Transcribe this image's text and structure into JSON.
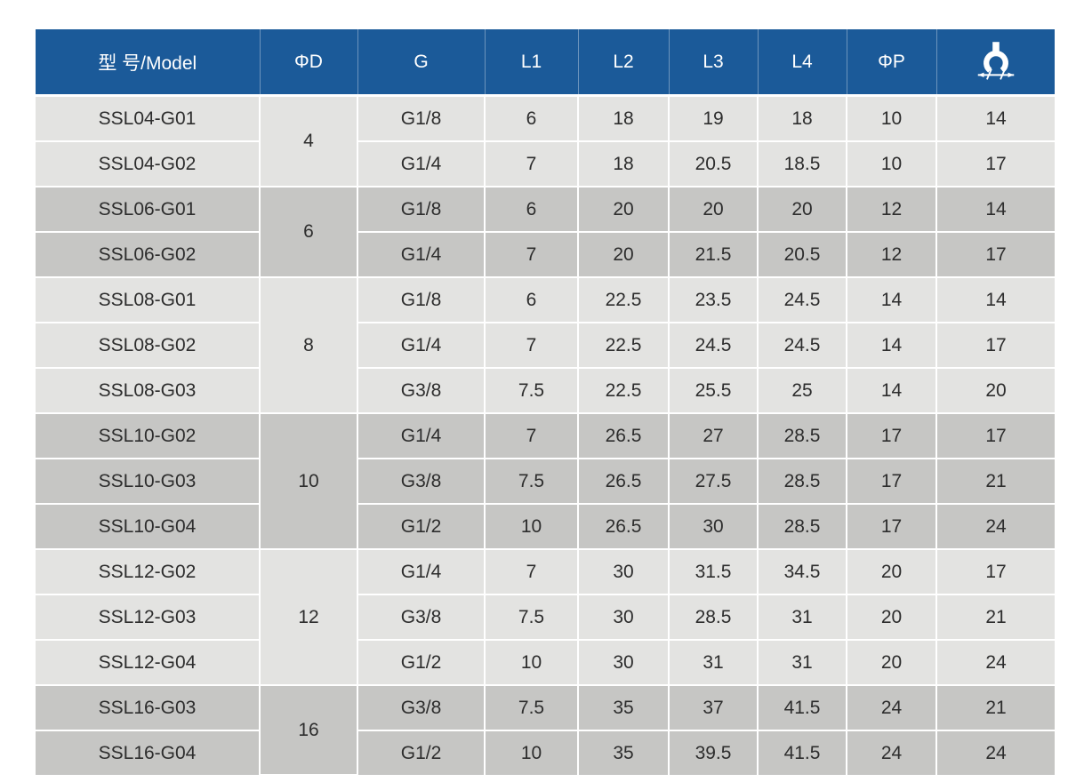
{
  "colors": {
    "header_bg": "#1b5a99",
    "header_text": "#ffffff",
    "header_divider": "#6c94bd",
    "row_light": "#e3e3e1",
    "row_dark": "#c6c6c4",
    "divider": "#ffffff",
    "body_text": "#2d2d2d"
  },
  "table": {
    "columns": [
      {
        "label": "型 号/Model"
      },
      {
        "label": "ΦD"
      },
      {
        "label": "G"
      },
      {
        "label": "L1"
      },
      {
        "label": "L2"
      },
      {
        "label": "L3"
      },
      {
        "label": "L4"
      },
      {
        "label": "ΦP"
      },
      {
        "icon": "wrench-size-icon"
      }
    ],
    "groups": [
      {
        "phi_d": "4",
        "shade": "light",
        "rows": [
          {
            "model": "SSL04-G01",
            "values": [
              "G1/8",
              "6",
              "18",
              "19",
              "18",
              "10",
              "14"
            ]
          },
          {
            "model": "SSL04-G02",
            "values": [
              "G1/4",
              "7",
              "18",
              "20.5",
              "18.5",
              "10",
              "17"
            ]
          }
        ]
      },
      {
        "phi_d": "6",
        "shade": "dark",
        "rows": [
          {
            "model": "SSL06-G01",
            "values": [
              "G1/8",
              "6",
              "20",
              "20",
              "20",
              "12",
              "14"
            ]
          },
          {
            "model": "SSL06-G02",
            "values": [
              "G1/4",
              "7",
              "20",
              "21.5",
              "20.5",
              "12",
              "17"
            ]
          }
        ]
      },
      {
        "phi_d": "8",
        "shade": "light",
        "rows": [
          {
            "model": "SSL08-G01",
            "values": [
              "G1/8",
              "6",
              "22.5",
              "23.5",
              "24.5",
              "14",
              "14"
            ]
          },
          {
            "model": "SSL08-G02",
            "values": [
              "G1/4",
              "7",
              "22.5",
              "24.5",
              "24.5",
              "14",
              "17"
            ]
          },
          {
            "model": "SSL08-G03",
            "values": [
              "G3/8",
              "7.5",
              "22.5",
              "25.5",
              "25",
              "14",
              "20"
            ]
          }
        ]
      },
      {
        "phi_d": "10",
        "shade": "dark",
        "rows": [
          {
            "model": "SSL10-G02",
            "values": [
              "G1/4",
              "7",
              "26.5",
              "27",
              "28.5",
              "17",
              "17"
            ]
          },
          {
            "model": "SSL10-G03",
            "values": [
              "G3/8",
              "7.5",
              "26.5",
              "27.5",
              "28.5",
              "17",
              "21"
            ]
          },
          {
            "model": "SSL10-G04",
            "values": [
              "G1/2",
              "10",
              "26.5",
              "30",
              "28.5",
              "17",
              "24"
            ]
          }
        ]
      },
      {
        "phi_d": "12",
        "shade": "light",
        "rows": [
          {
            "model": "SSL12-G02",
            "values": [
              "G1/4",
              "7",
              "30",
              "31.5",
              "34.5",
              "20",
              "17"
            ]
          },
          {
            "model": "SSL12-G03",
            "values": [
              "G3/8",
              "7.5",
              "30",
              "28.5",
              "31",
              "20",
              "21"
            ]
          },
          {
            "model": "SSL12-G04",
            "values": [
              "G1/2",
              "10",
              "30",
              "31",
              "31",
              "20",
              "24"
            ]
          }
        ]
      },
      {
        "phi_d": "16",
        "shade": "dark",
        "rows": [
          {
            "model": "SSL16-G03",
            "values": [
              "G3/8",
              "7.5",
              "35",
              "37",
              "41.5",
              "24",
              "21"
            ]
          },
          {
            "model": "SSL16-G04",
            "values": [
              "G1/2",
              "10",
              "35",
              "39.5",
              "41.5",
              "24",
              "24"
            ]
          }
        ]
      }
    ]
  },
  "chart_data": {
    "type": "table",
    "columns": [
      "型 号/Model",
      "ΦD",
      "G",
      "L1",
      "L2",
      "L3",
      "L4",
      "ΦP",
      "wrench_size"
    ],
    "rows": [
      [
        "SSL04-G01",
        "4",
        "G1/8",
        "6",
        "18",
        "19",
        "18",
        "10",
        "14"
      ],
      [
        "SSL04-G02",
        "4",
        "G1/4",
        "7",
        "18",
        "20.5",
        "18.5",
        "10",
        "17"
      ],
      [
        "SSL06-G01",
        "6",
        "G1/8",
        "6",
        "20",
        "20",
        "20",
        "12",
        "14"
      ],
      [
        "SSL06-G02",
        "6",
        "G1/4",
        "7",
        "20",
        "21.5",
        "20.5",
        "12",
        "17"
      ],
      [
        "SSL08-G01",
        "8",
        "G1/8",
        "6",
        "22.5",
        "23.5",
        "24.5",
        "14",
        "14"
      ],
      [
        "SSL08-G02",
        "8",
        "G1/4",
        "7",
        "22.5",
        "24.5",
        "24.5",
        "14",
        "17"
      ],
      [
        "SSL08-G03",
        "8",
        "G3/8",
        "7.5",
        "22.5",
        "25.5",
        "25",
        "14",
        "20"
      ],
      [
        "SSL10-G02",
        "10",
        "G1/4",
        "7",
        "26.5",
        "27",
        "28.5",
        "17",
        "17"
      ],
      [
        "SSL10-G03",
        "10",
        "G3/8",
        "7.5",
        "26.5",
        "27.5",
        "28.5",
        "17",
        "21"
      ],
      [
        "SSL10-G04",
        "10",
        "G1/2",
        "10",
        "26.5",
        "30",
        "28.5",
        "17",
        "24"
      ],
      [
        "SSL12-G02",
        "12",
        "G1/4",
        "7",
        "30",
        "31.5",
        "34.5",
        "20",
        "17"
      ],
      [
        "SSL12-G03",
        "12",
        "G3/8",
        "7.5",
        "30",
        "28.5",
        "31",
        "20",
        "21"
      ],
      [
        "SSL12-G04",
        "12",
        "G1/2",
        "10",
        "30",
        "31",
        "31",
        "20",
        "24"
      ],
      [
        "SSL16-G03",
        "16",
        "G3/8",
        "7.5",
        "35",
        "37",
        "41.5",
        "24",
        "21"
      ],
      [
        "SSL16-G04",
        "16",
        "G1/2",
        "10",
        "35",
        "39.5",
        "41.5",
        "24",
        "24"
      ]
    ]
  }
}
